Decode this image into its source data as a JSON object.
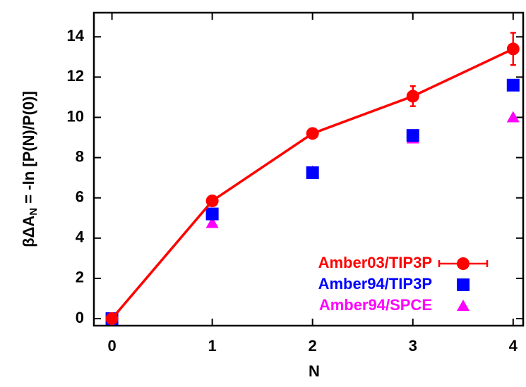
{
  "chart_data": {
    "type": "scatter",
    "x_label": "N",
    "y_label": [
      "βΔA",
      "N",
      " = -ln [P(N)/P(0)]"
    ],
    "xlim": [
      -0.18,
      4.1
    ],
    "ylim": [
      -0.35,
      15.2
    ],
    "xticks": [
      0,
      1,
      2,
      3,
      4
    ],
    "yticks": [
      0,
      2,
      4,
      6,
      8,
      10,
      12,
      14
    ],
    "legend": "lower right",
    "series": [
      {
        "name": "Amber03/TIP3P",
        "color": "#ff0000",
        "marker": "circle",
        "line": true,
        "x": [
          0,
          1,
          2,
          3,
          4
        ],
        "values": [
          0,
          5.85,
          9.2,
          11.05,
          13.4
        ],
        "errors": [
          0,
          0.15,
          0.15,
          0.5,
          0.8
        ]
      },
      {
        "name": "Amber94/TIP3P",
        "color": "#0000ff",
        "marker": "square",
        "line": false,
        "x": [
          0,
          1,
          2,
          3,
          4
        ],
        "values": [
          0,
          5.2,
          7.25,
          9.1,
          11.6
        ]
      },
      {
        "name": "Amber94/SPCE",
        "color": "#ff00ff",
        "marker": "triangle",
        "line": false,
        "x": [
          0,
          1,
          2,
          3,
          4
        ],
        "values": [
          0,
          4.75,
          7.3,
          8.95,
          10
        ]
      }
    ]
  }
}
